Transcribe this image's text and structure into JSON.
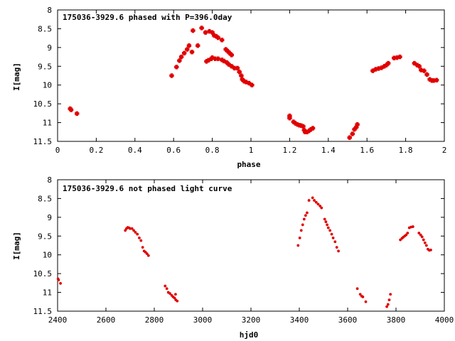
{
  "colors": {
    "points": "#e00000",
    "axes": "#000000",
    "background": "#ffffff"
  },
  "chart_data": [
    {
      "type": "scatter",
      "title": "175036-3929.6 phased with P=396.0day",
      "xlabel": "phase",
      "ylabel": "I[mag]",
      "xlim": [
        0,
        2
      ],
      "ylim": [
        8,
        11.5
      ],
      "y_inverted": true,
      "grid": false,
      "x_ticks": [
        "0",
        "0.2",
        "0.4",
        "0.6",
        "0.8",
        "1",
        "1.2",
        "1.4",
        "1.6",
        "1.8",
        "2"
      ],
      "y_ticks": [
        "8",
        "8.5",
        "9",
        "9.5",
        "10",
        "10.5",
        "11",
        "11.5"
      ],
      "x_tick_values": [
        0,
        0.2,
        0.4,
        0.6,
        0.8,
        1.0,
        1.2,
        1.4,
        1.6,
        1.8,
        2.0
      ],
      "y_tick_values": [
        8,
        8.5,
        9,
        9.5,
        10,
        10.5,
        11,
        11.5
      ],
      "points": [
        [
          0.065,
          10.63
        ],
        [
          0.07,
          10.66
        ],
        [
          0.1,
          10.76
        ],
        [
          0.59,
          9.75
        ],
        [
          0.615,
          9.52
        ],
        [
          0.63,
          9.35
        ],
        [
          0.64,
          9.25
        ],
        [
          0.655,
          9.15
        ],
        [
          0.67,
          9.05
        ],
        [
          0.68,
          8.95
        ],
        [
          0.695,
          9.12
        ],
        [
          0.7,
          8.55
        ],
        [
          0.725,
          8.95
        ],
        [
          0.745,
          8.48
        ],
        [
          0.77,
          9.37
        ],
        [
          0.78,
          9.34
        ],
        [
          0.795,
          9.3
        ],
        [
          0.8,
          9.27
        ],
        [
          0.765,
          8.6
        ],
        [
          0.785,
          8.57
        ],
        [
          0.8,
          8.6
        ],
        [
          0.81,
          8.68
        ],
        [
          0.82,
          8.7
        ],
        [
          0.83,
          8.74
        ],
        [
          0.85,
          8.8
        ],
        [
          0.815,
          9.3
        ],
        [
          0.83,
          9.3
        ],
        [
          0.85,
          9.33
        ],
        [
          0.86,
          9.36
        ],
        [
          0.875,
          9.4
        ],
        [
          0.885,
          9.45
        ],
        [
          0.9,
          9.5
        ],
        [
          0.915,
          9.55
        ],
        [
          0.87,
          9.05
        ],
        [
          0.88,
          9.1
        ],
        [
          0.89,
          9.15
        ],
        [
          0.9,
          9.2
        ],
        [
          0.93,
          9.55
        ],
        [
          0.94,
          9.65
        ],
        [
          0.95,
          9.75
        ],
        [
          0.955,
          9.85
        ],
        [
          0.965,
          9.9
        ],
        [
          0.975,
          9.92
        ],
        [
          0.99,
          9.95
        ],
        [
          1.005,
          10.0
        ],
        [
          1.2,
          10.82
        ],
        [
          1.2,
          10.88
        ],
        [
          1.22,
          10.98
        ],
        [
          1.23,
          11.02
        ],
        [
          1.24,
          11.05
        ],
        [
          1.25,
          11.07
        ],
        [
          1.26,
          11.08
        ],
        [
          1.27,
          11.1
        ],
        [
          1.275,
          11.2
        ],
        [
          1.28,
          11.25
        ],
        [
          1.29,
          11.25
        ],
        [
          1.3,
          11.22
        ],
        [
          1.31,
          11.18
        ],
        [
          1.32,
          11.15
        ],
        [
          1.51,
          11.4
        ],
        [
          1.525,
          11.3
        ],
        [
          1.535,
          11.18
        ],
        [
          1.545,
          11.12
        ],
        [
          1.55,
          11.05
        ],
        [
          1.63,
          9.62
        ],
        [
          1.645,
          9.58
        ],
        [
          1.66,
          9.56
        ],
        [
          1.675,
          9.54
        ],
        [
          1.69,
          9.5
        ],
        [
          1.7,
          9.47
        ],
        [
          1.71,
          9.42
        ],
        [
          1.74,
          9.28
        ],
        [
          1.755,
          9.27
        ],
        [
          1.77,
          9.25
        ],
        [
          1.845,
          9.42
        ],
        [
          1.86,
          9.47
        ],
        [
          1.87,
          9.5
        ],
        [
          1.88,
          9.6
        ],
        [
          1.895,
          9.62
        ],
        [
          1.91,
          9.72
        ],
        [
          1.925,
          9.85
        ],
        [
          1.935,
          9.88
        ],
        [
          1.945,
          9.88
        ],
        [
          1.96,
          9.87
        ]
      ]
    },
    {
      "type": "scatter",
      "title": "175036-3929.6 not phased light curve",
      "xlabel": "hjd0",
      "ylabel": "I[mag]",
      "xlim": [
        2400,
        4000
      ],
      "ylim": [
        8,
        11.5
      ],
      "y_inverted": true,
      "grid": false,
      "x_ticks": [
        "2400",
        "2600",
        "2800",
        "3000",
        "3200",
        "3400",
        "3600",
        "3800",
        "4000"
      ],
      "y_ticks": [
        "8",
        "8.5",
        "9",
        "9.5",
        "10",
        "10.5",
        "11",
        "11.5"
      ],
      "x_tick_values": [
        2400,
        2600,
        2800,
        3000,
        3200,
        3400,
        3600,
        3800,
        4000
      ],
      "y_tick_values": [
        8,
        8.5,
        9,
        9.5,
        10,
        10.5,
        11,
        11.5
      ],
      "points": [
        [
          2402,
          10.64
        ],
        [
          2404,
          10.67
        ],
        [
          2412,
          10.76
        ],
        [
          2680,
          9.35
        ],
        [
          2685,
          9.3
        ],
        [
          2690,
          9.27
        ],
        [
          2695,
          9.28
        ],
        [
          2700,
          9.3
        ],
        [
          2708,
          9.3
        ],
        [
          2715,
          9.35
        ],
        [
          2722,
          9.4
        ],
        [
          2730,
          9.45
        ],
        [
          2738,
          9.55
        ],
        [
          2745,
          9.62
        ],
        [
          2752,
          9.8
        ],
        [
          2758,
          9.9
        ],
        [
          2764,
          9.93
        ],
        [
          2770,
          9.97
        ],
        [
          2776,
          10.02
        ],
        [
          2845,
          10.83
        ],
        [
          2852,
          10.9
        ],
        [
          2858,
          11.0
        ],
        [
          2865,
          11.03
        ],
        [
          2872,
          11.08
        ],
        [
          2878,
          11.12
        ],
        [
          2884,
          11.15
        ],
        [
          2889,
          11.2
        ],
        [
          2895,
          11.23
        ],
        [
          2888,
          11.05
        ],
        [
          3395,
          9.75
        ],
        [
          3402,
          9.55
        ],
        [
          3408,
          9.35
        ],
        [
          3414,
          9.2
        ],
        [
          3420,
          9.05
        ],
        [
          3426,
          8.95
        ],
        [
          3432,
          8.88
        ],
        [
          3440,
          8.55
        ],
        [
          3455,
          8.48
        ],
        [
          3462,
          8.55
        ],
        [
          3470,
          8.6
        ],
        [
          3478,
          8.65
        ],
        [
          3486,
          8.7
        ],
        [
          3492,
          8.75
        ],
        [
          3505,
          9.05
        ],
        [
          3510,
          9.12
        ],
        [
          3515,
          9.2
        ],
        [
          3520,
          9.28
        ],
        [
          3527,
          9.35
        ],
        [
          3534,
          9.45
        ],
        [
          3540,
          9.55
        ],
        [
          3548,
          9.65
        ],
        [
          3555,
          9.8
        ],
        [
          3562,
          9.9
        ],
        [
          3640,
          10.9
        ],
        [
          3652,
          11.05
        ],
        [
          3658,
          11.1
        ],
        [
          3663,
          11.12
        ],
        [
          3675,
          11.25
        ],
        [
          3762,
          11.38
        ],
        [
          3767,
          11.32
        ],
        [
          3772,
          11.2
        ],
        [
          3777,
          11.05
        ],
        [
          3818,
          9.6
        ],
        [
          3825,
          9.56
        ],
        [
          3830,
          9.53
        ],
        [
          3836,
          9.5
        ],
        [
          3842,
          9.47
        ],
        [
          3848,
          9.42
        ],
        [
          3855,
          9.28
        ],
        [
          3862,
          9.26
        ],
        [
          3870,
          9.25
        ],
        [
          3895,
          9.42
        ],
        [
          3902,
          9.47
        ],
        [
          3908,
          9.52
        ],
        [
          3914,
          9.6
        ],
        [
          3920,
          9.68
        ],
        [
          3926,
          9.75
        ],
        [
          3932,
          9.85
        ],
        [
          3938,
          9.88
        ],
        [
          3944,
          9.87
        ]
      ]
    }
  ]
}
